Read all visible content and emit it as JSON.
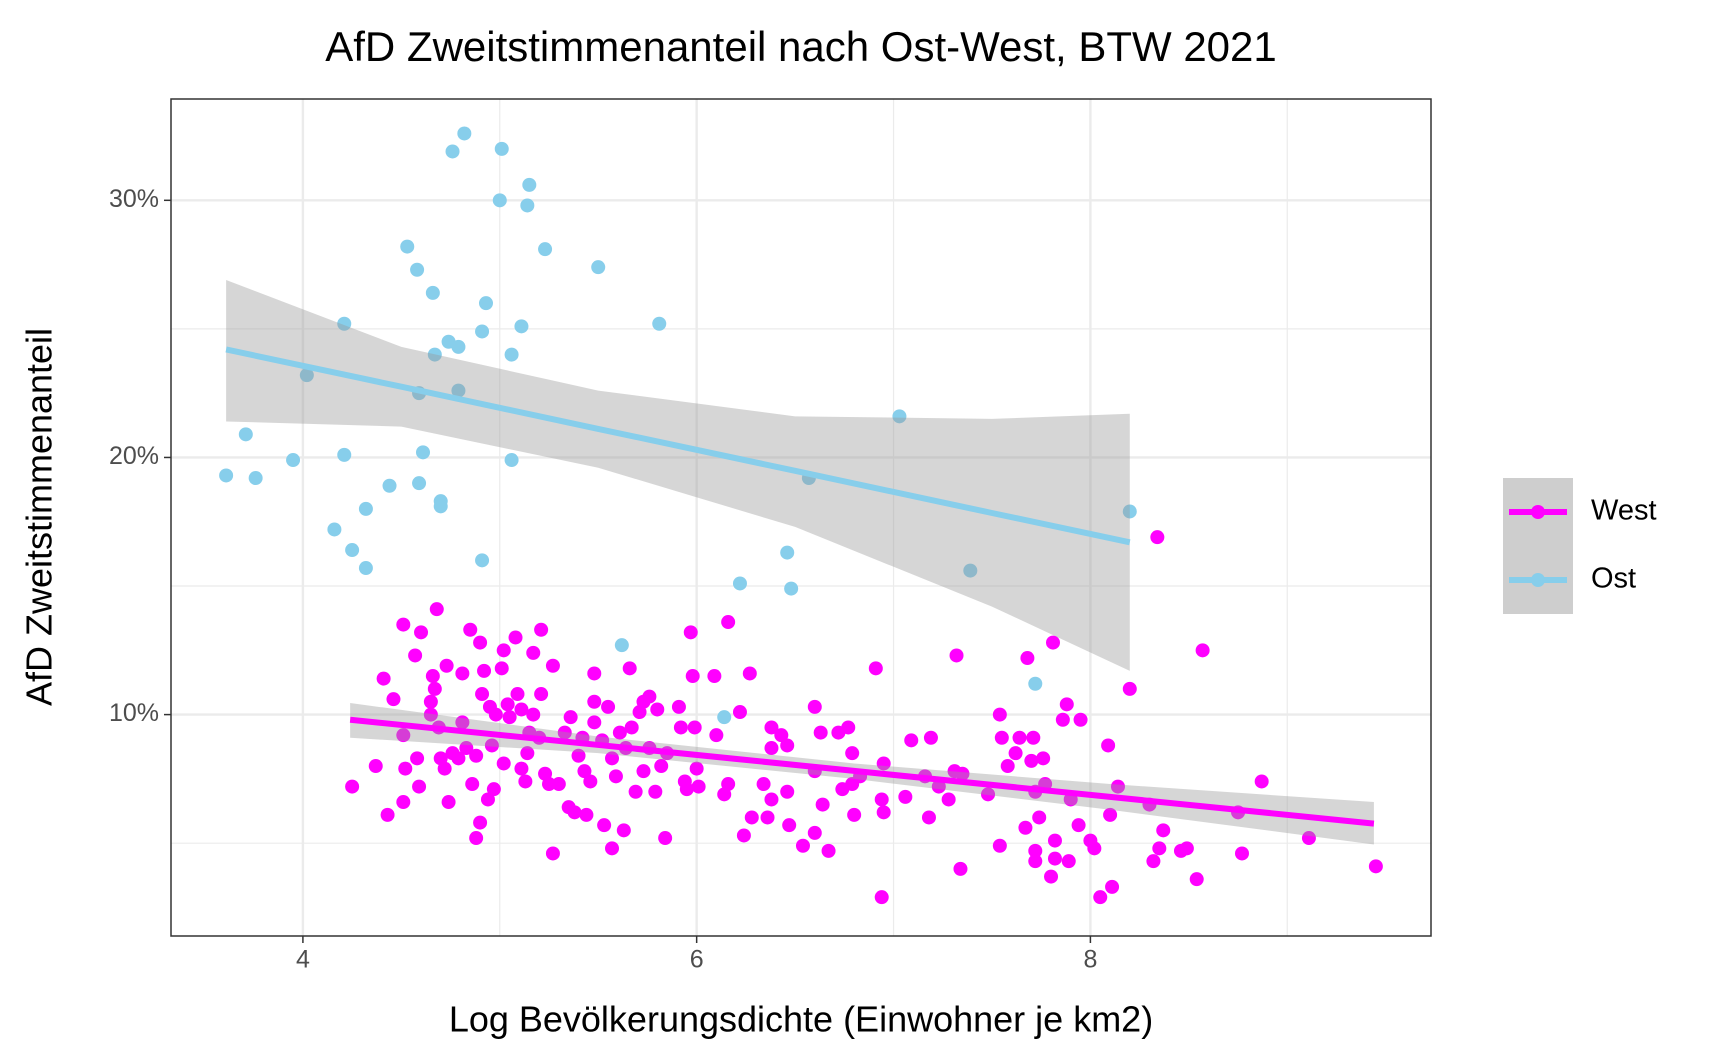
{
  "chart_data": {
    "type": "scatter",
    "title": "AfD Zweitstimmenanteil nach Ost-West, BTW 2021",
    "x_label": "Log Bevölkerungsdichte (Einwohner je km2)",
    "y_label": "AfD Zweitstimmenanteil",
    "xlim": [
      3.33,
      9.73
    ],
    "ylim": [
      1.39,
      33.94
    ],
    "xticks": [
      4,
      6,
      8
    ],
    "yticks": [
      {
        "value": 10,
        "label": "10%"
      },
      {
        "value": 20,
        "label": "20%"
      },
      {
        "value": 30,
        "label": "30%"
      }
    ],
    "x_minor_ticks": [
      5,
      7,
      9
    ],
    "y_minor_ticks": [
      5,
      15,
      25
    ],
    "grid": true,
    "legend": "right",
    "series": [
      {
        "name": "West",
        "color": "#ff00ff",
        "x": [
          4.25,
          4.37,
          4.41,
          4.43,
          4.46,
          4.51,
          4.51,
          4.52,
          4.51,
          4.57,
          4.58,
          4.59,
          4.6,
          4.66,
          4.65,
          4.65,
          4.67,
          4.68,
          4.69,
          4.7,
          4.72,
          4.73,
          4.74,
          4.76,
          4.79,
          4.81,
          4.81,
          4.83,
          4.85,
          4.86,
          4.88,
          4.88,
          4.9,
          4.9,
          4.91,
          4.92,
          4.94,
          4.95,
          4.96,
          4.97,
          4.98,
          5.01,
          5.02,
          5.02,
          5.04,
          5.05,
          5.08,
          5.09,
          5.11,
          5.11,
          5.13,
          5.14,
          5.15,
          5.17,
          5.17,
          5.2,
          5.21,
          5.21,
          5.23,
          5.25,
          5.27,
          5.27,
          5.3,
          5.33,
          5.35,
          5.36,
          5.38,
          5.4,
          5.42,
          5.43,
          5.44,
          5.46,
          5.48,
          5.48,
          5.48,
          5.52,
          5.53,
          5.55,
          5.57,
          5.57,
          5.59,
          5.61,
          5.63,
          5.64,
          5.66,
          5.67,
          5.69,
          5.71,
          5.73,
          5.73,
          5.76,
          5.76,
          5.79,
          5.8,
          5.82,
          5.84,
          5.85,
          5.91,
          5.92,
          5.94,
          5.95,
          5.97,
          5.98,
          5.99,
          6.0,
          6.01,
          6.09,
          6.1,
          6.14,
          6.16,
          6.16,
          6.22,
          6.24,
          6.27,
          6.28,
          6.34,
          6.36,
          6.38,
          6.38,
          6.38,
          6.43,
          6.46,
          6.46,
          6.47,
          6.54,
          6.6,
          6.6,
          6.6,
          6.63,
          6.64,
          6.67,
          6.72,
          6.74,
          6.77,
          6.79,
          6.79,
          6.8,
          6.83,
          6.91,
          6.94,
          6.94,
          6.95,
          6.95,
          7.06,
          7.09,
          7.16,
          7.18,
          7.19,
          7.23,
          7.28,
          7.31,
          7.32,
          7.34,
          7.35,
          7.48,
          7.54,
          7.54,
          7.55,
          7.58,
          7.62,
          7.64,
          7.67,
          7.68,
          7.7,
          7.71,
          7.72,
          7.72,
          7.72,
          7.74,
          7.76,
          7.77,
          7.8,
          7.81,
          7.82,
          7.82,
          7.86,
          7.88,
          7.89,
          7.9,
          7.94,
          7.95,
          8.0,
          8.02,
          8.05,
          8.09,
          8.1,
          8.11,
          8.14,
          8.2,
          8.3,
          8.32,
          8.34,
          8.35,
          8.37,
          8.46,
          8.49,
          8.54,
          8.57,
          8.75,
          8.77,
          8.87,
          9.11,
          9.45
        ],
        "values": [
          7.2,
          8.0,
          11.4,
          6.1,
          10.6,
          9.2,
          13.5,
          7.9,
          6.6,
          12.3,
          8.3,
          7.2,
          13.2,
          11.5,
          10.5,
          10.0,
          11.0,
          14.1,
          9.5,
          8.3,
          7.9,
          11.9,
          6.6,
          8.5,
          8.3,
          11.6,
          9.7,
          8.7,
          13.3,
          7.3,
          8.4,
          5.2,
          5.8,
          12.8,
          10.8,
          11.7,
          6.7,
          10.3,
          8.8,
          7.1,
          10.0,
          11.8,
          12.5,
          8.1,
          10.4,
          9.9,
          13.0,
          10.8,
          10.2,
          7.9,
          7.4,
          8.5,
          9.3,
          10.0,
          12.4,
          9.1,
          13.3,
          10.8,
          7.7,
          7.3,
          11.9,
          4.6,
          7.3,
          9.3,
          6.4,
          9.9,
          6.2,
          8.4,
          9.1,
          7.8,
          6.1,
          7.4,
          11.6,
          9.7,
          10.5,
          9.0,
          5.7,
          10.3,
          4.8,
          8.3,
          7.6,
          9.3,
          5.5,
          8.7,
          11.8,
          9.5,
          7.0,
          10.1,
          10.5,
          7.8,
          10.7,
          8.7,
          7.0,
          10.2,
          8.0,
          5.2,
          8.5,
          10.3,
          9.5,
          7.4,
          7.1,
          13.2,
          11.5,
          9.5,
          7.9,
          7.2,
          11.5,
          9.2,
          6.9,
          7.3,
          13.6,
          10.1,
          5.3,
          11.6,
          6.0,
          7.3,
          6.0,
          9.5,
          6.7,
          8.7,
          9.2,
          8.8,
          7.0,
          5.7,
          4.9,
          7.8,
          5.4,
          10.3,
          9.3,
          6.5,
          4.7,
          9.3,
          7.1,
          9.5,
          7.3,
          8.5,
          6.1,
          7.6,
          11.8,
          6.7,
          2.9,
          6.2,
          8.1,
          6.8,
          9.0,
          7.6,
          6.0,
          9.1,
          7.2,
          6.7,
          7.8,
          12.3,
          4.0,
          7.7,
          6.9,
          10.0,
          4.9,
          9.1,
          8.0,
          8.5,
          9.1,
          5.6,
          12.2,
          8.2,
          9.1,
          4.7,
          7.0,
          4.3,
          6.0,
          8.3,
          7.3,
          3.7,
          12.8,
          5.1,
          4.4,
          9.8,
          10.4,
          4.3,
          6.7,
          5.7,
          9.8,
          5.1,
          4.8,
          2.9,
          8.8,
          6.1,
          3.3,
          7.2,
          11.0,
          6.5,
          4.3,
          16.9,
          4.8,
          5.5,
          4.7,
          4.8,
          3.6,
          12.5,
          6.2,
          4.6,
          7.4,
          5.2,
          4.1
        ],
        "fit": {
          "x": [
            4.24,
            5.5,
            6.8,
            8.1,
            9.44
          ],
          "values": [
            9.8,
            8.82,
            7.81,
            6.8,
            5.76
          ],
          "lower": [
            9.1,
            8.5,
            7.5,
            6.3,
            4.95
          ],
          "upper": [
            10.45,
            9.15,
            8.1,
            7.3,
            6.6
          ]
        }
      },
      {
        "name": "Ost",
        "color": "#87ceeb",
        "x": [
          3.61,
          3.71,
          3.76,
          3.95,
          4.02,
          4.16,
          4.21,
          4.21,
          4.25,
          4.32,
          4.32,
          4.44,
          4.53,
          4.58,
          4.59,
          4.59,
          4.61,
          4.66,
          4.67,
          4.7,
          4.7,
          4.74,
          4.76,
          4.79,
          4.79,
          4.82,
          4.91,
          4.91,
          4.93,
          5.0,
          5.01,
          5.06,
          5.06,
          5.11,
          5.14,
          5.15,
          5.23,
          5.5,
          5.62,
          5.81,
          6.14,
          6.22,
          6.46,
          6.48,
          6.57,
          7.03,
          7.39,
          7.72,
          8.2
        ],
        "values": [
          19.3,
          20.9,
          19.2,
          19.9,
          23.2,
          17.2,
          25.2,
          20.1,
          16.4,
          15.7,
          18.0,
          18.9,
          28.2,
          27.3,
          22.5,
          19.0,
          20.2,
          26.4,
          24.0,
          18.3,
          18.1,
          24.5,
          31.9,
          24.3,
          22.6,
          32.6,
          16.0,
          24.9,
          26.0,
          30.0,
          32.0,
          24.0,
          19.9,
          25.1,
          29.8,
          30.6,
          28.1,
          27.4,
          12.7,
          25.2,
          9.9,
          15.1,
          16.3,
          14.9,
          19.2,
          21.6,
          15.6,
          11.2,
          17.9
        ],
        "fit": {
          "x": [
            3.61,
            4.5,
            5.5,
            6.5,
            7.5,
            8.2
          ],
          "values": [
            24.2,
            22.75,
            21.11,
            19.48,
            17.84,
            16.7
          ],
          "lower": [
            21.4,
            21.2,
            19.6,
            17.3,
            14.2,
            11.7
          ],
          "upper": [
            26.9,
            24.3,
            22.6,
            21.6,
            21.5,
            21.7
          ]
        }
      }
    ]
  }
}
